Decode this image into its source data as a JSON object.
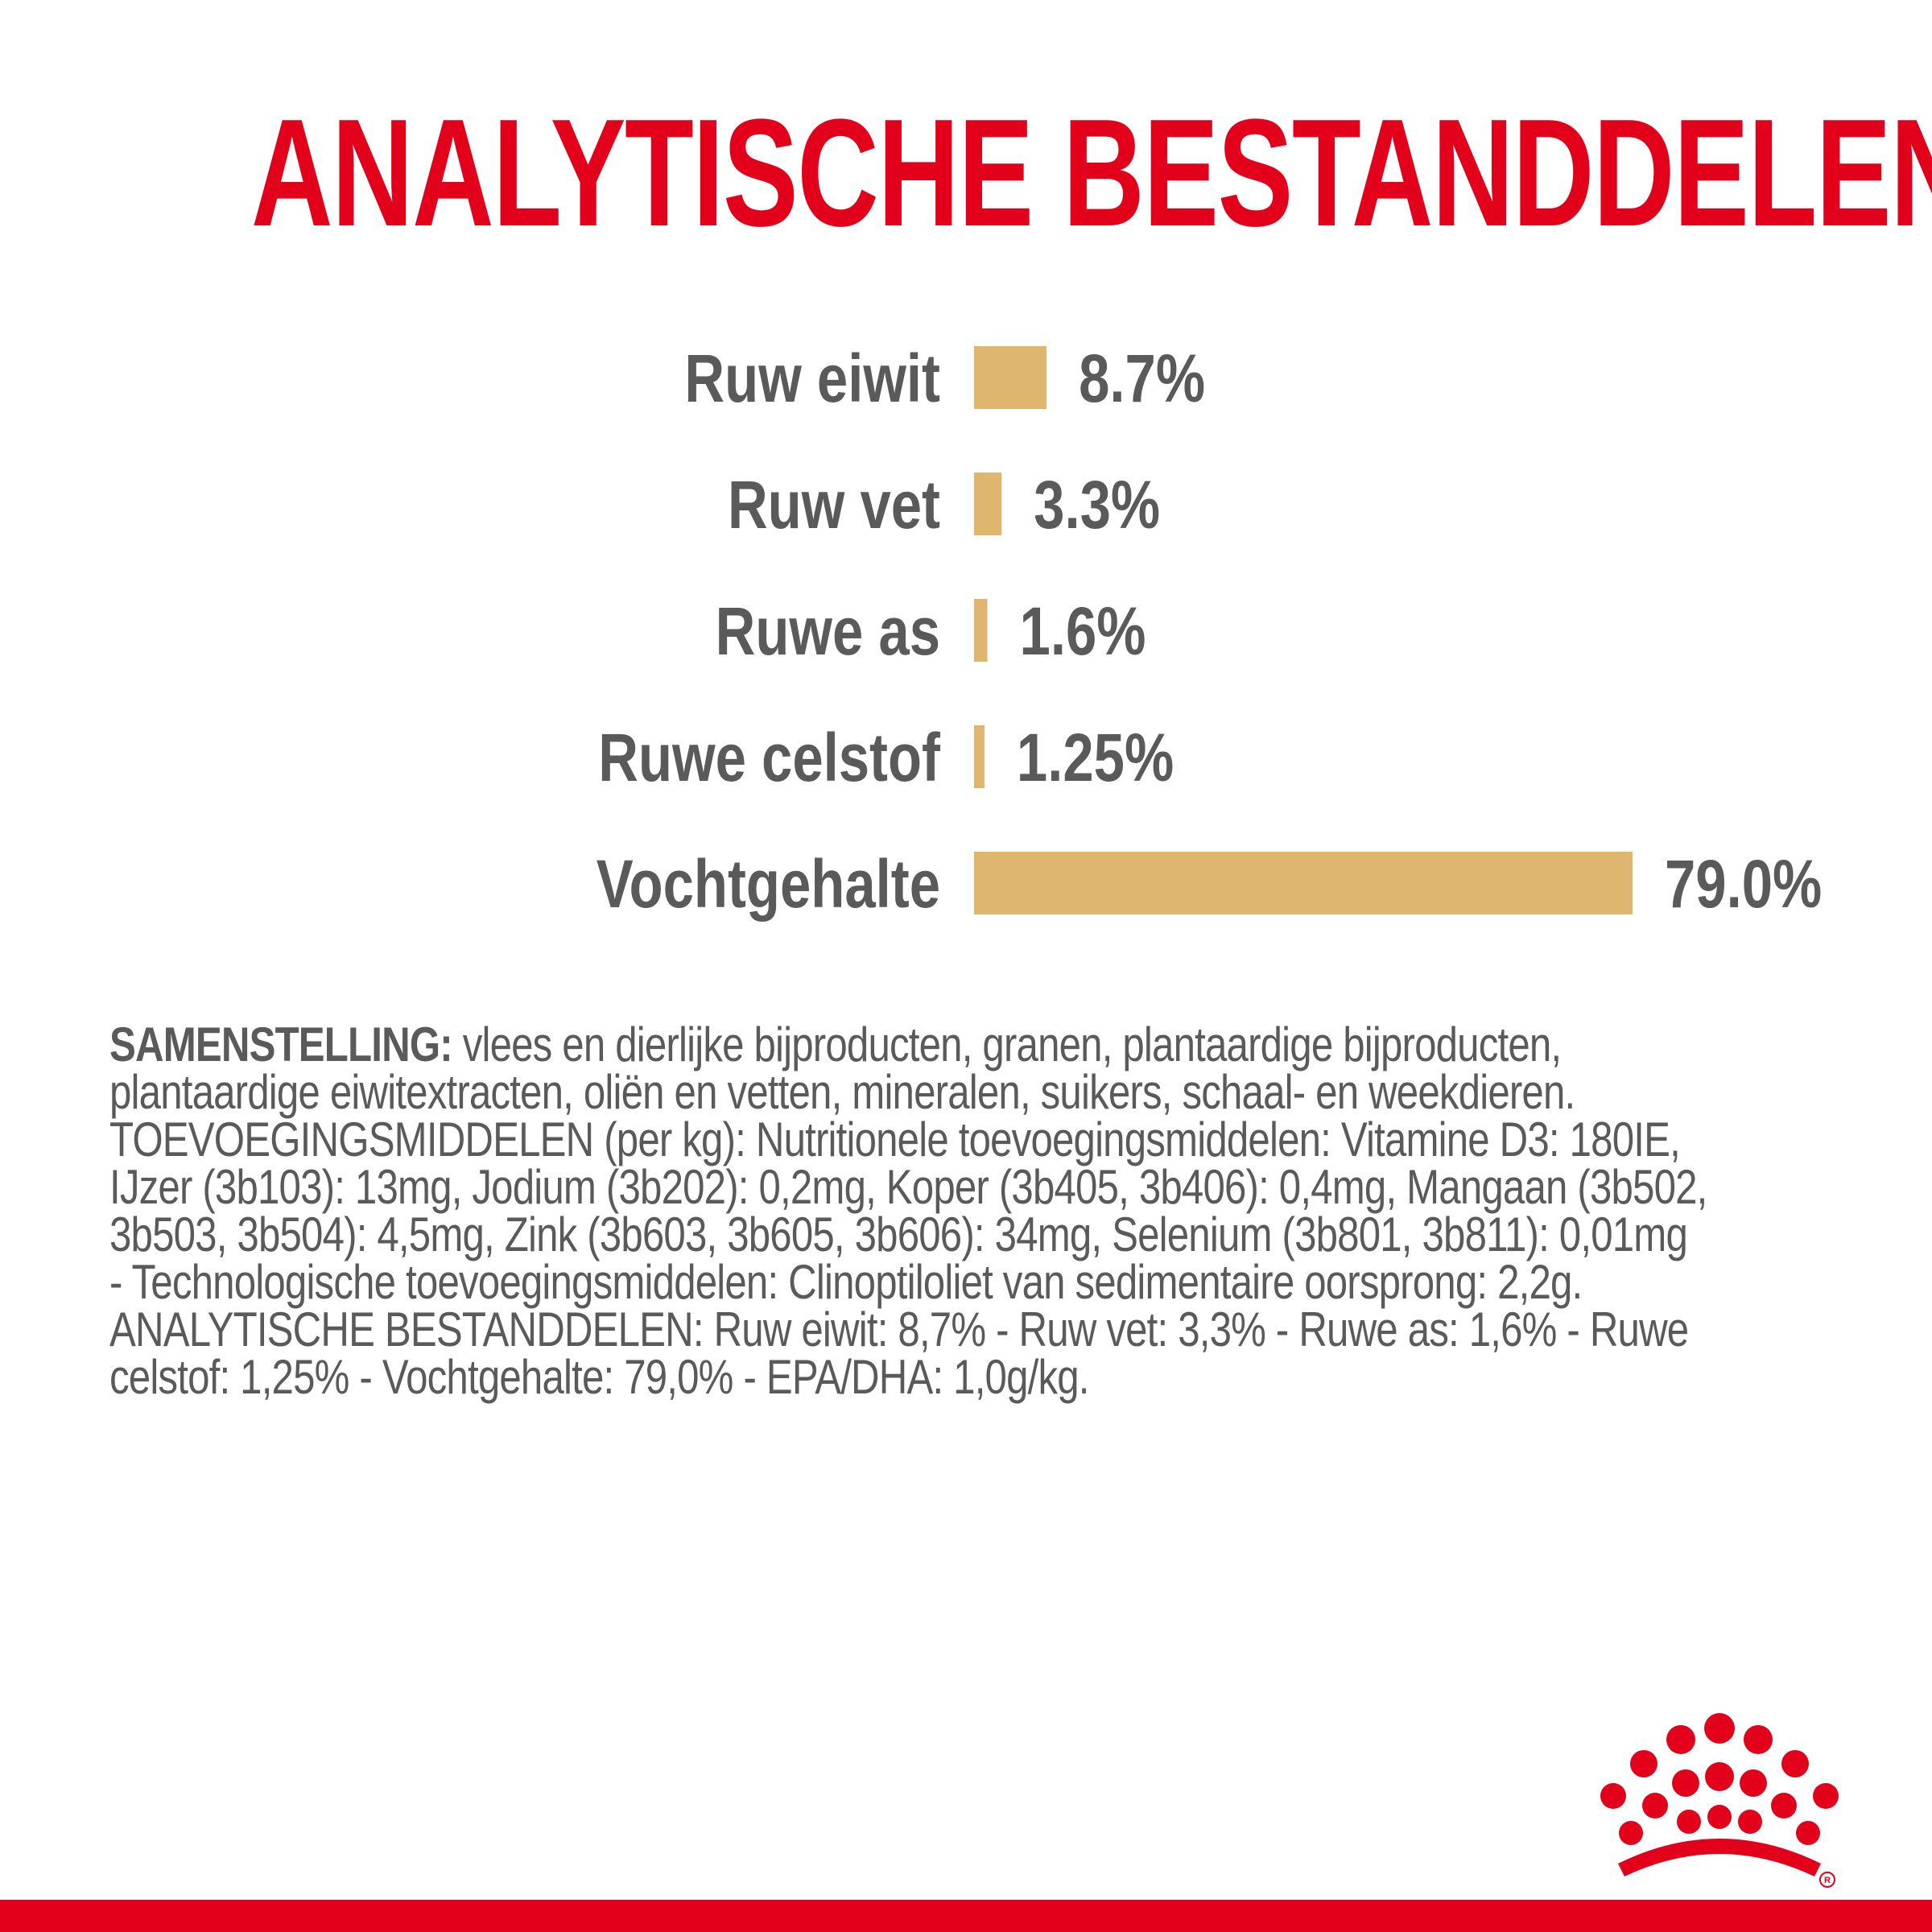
{
  "title": "ANALYTISCHE BESTANDDELEN",
  "colors": {
    "title": "#e2001a",
    "text": "#5a5a5a",
    "bar": "#dfb66e",
    "brand_red": "#e2001a"
  },
  "chart_data": {
    "type": "bar",
    "orientation": "horizontal",
    "categories": [
      "Ruw eiwit",
      "Ruw vet",
      "Ruwe as",
      "Ruwe celstof",
      "Vochtgehalte"
    ],
    "values": [
      8.7,
      3.3,
      1.6,
      1.25,
      79.0
    ],
    "value_labels": [
      "8.7%",
      "3.3%",
      "1.6%",
      "1.25%",
      "79.0%"
    ],
    "xlim": [
      0,
      79.0
    ],
    "grid": false
  },
  "composition": {
    "lead": "SAMENSTELLING:",
    "lines": [
      " vlees en dierlijke bijproducten, granen, plantaardige bijproducten,",
      "plantaardige eiwitextracten, oliën en vetten, mineralen, suikers, schaal- en weekdieren.",
      "TOEVOEGINGSMIDDELEN (per kg): Nutritionele toevoegingsmiddelen: Vitamine D3: 180IE,",
      "IJzer (3b103): 13mg, Jodium (3b202): 0,2mg, Koper (3b405, 3b406): 0,4mg, Mangaan (3b502,",
      "3b503, 3b504): 4,5mg, Zink (3b603, 3b605, 3b606): 34mg, Selenium (3b801, 3b811): 0,01mg",
      "- Technologische toevoegingsmiddelen: Clinoptiloliet van sedimentaire oorsprong: 2,2g.",
      "ANALYTISCHE BESTANDDELEN: Ruw eiwit: 8,7% - Ruw vet: 3,3% - Ruwe as: 1,6% - Ruwe",
      "celstof: 1,25% - Vochtgehalte: 79,0% - EPA/DHA: 1,0g/kg."
    ]
  },
  "logo": {
    "icon": "crown-logo-icon"
  }
}
